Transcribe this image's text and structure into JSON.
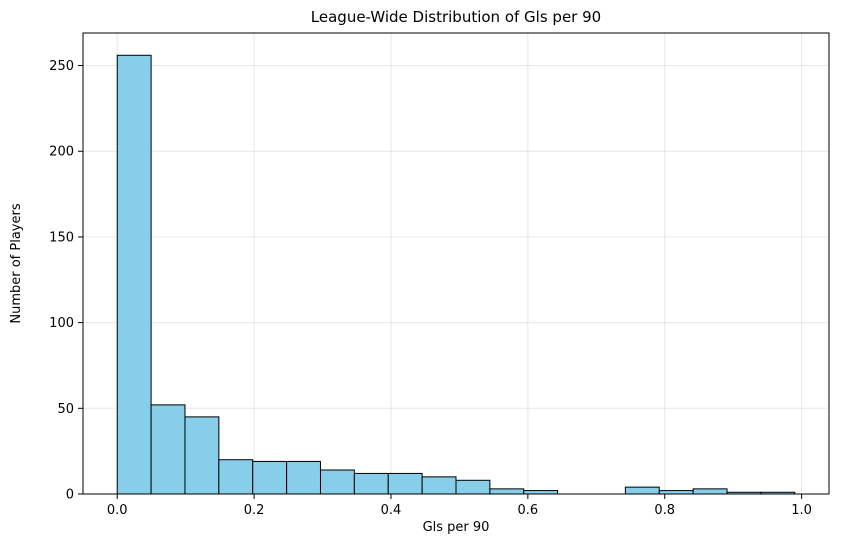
{
  "chart_data": {
    "type": "bar",
    "title": "League-Wide Distribution of Gls per 90",
    "xlabel": "Gls per 90",
    "ylabel": "Number of Players",
    "xlim": [
      -0.05,
      1.04
    ],
    "ylim": [
      0,
      269
    ],
    "grid": true,
    "bar_color": "#87ceeb",
    "edge_color": "#000000",
    "xticks": [
      0.0,
      0.2,
      0.4,
      0.6,
      0.8,
      1.0
    ],
    "xtick_labels": [
      "0.0",
      "0.2",
      "0.4",
      "0.6",
      "0.8",
      "1.0"
    ],
    "yticks": [
      0,
      50,
      100,
      150,
      200,
      250
    ],
    "ytick_labels": [
      "0",
      "50",
      "100",
      "150",
      "200",
      "250"
    ],
    "bins": [
      {
        "x0": 0.0,
        "x1": 0.0495,
        "count": 256
      },
      {
        "x0": 0.0495,
        "x1": 0.099,
        "count": 52
      },
      {
        "x0": 0.099,
        "x1": 0.1485,
        "count": 45
      },
      {
        "x0": 0.1485,
        "x1": 0.198,
        "count": 20
      },
      {
        "x0": 0.198,
        "x1": 0.2475,
        "count": 19
      },
      {
        "x0": 0.2475,
        "x1": 0.297,
        "count": 19
      },
      {
        "x0": 0.297,
        "x1": 0.3465,
        "count": 14
      },
      {
        "x0": 0.3465,
        "x1": 0.396,
        "count": 12
      },
      {
        "x0": 0.396,
        "x1": 0.4455,
        "count": 12
      },
      {
        "x0": 0.4455,
        "x1": 0.495,
        "count": 10
      },
      {
        "x0": 0.495,
        "x1": 0.5445,
        "count": 8
      },
      {
        "x0": 0.5445,
        "x1": 0.594,
        "count": 3
      },
      {
        "x0": 0.594,
        "x1": 0.6435,
        "count": 2
      },
      {
        "x0": 0.6435,
        "x1": 0.693,
        "count": 0
      },
      {
        "x0": 0.693,
        "x1": 0.7425,
        "count": 0
      },
      {
        "x0": 0.7425,
        "x1": 0.792,
        "count": 4
      },
      {
        "x0": 0.792,
        "x1": 0.8415,
        "count": 2
      },
      {
        "x0": 0.8415,
        "x1": 0.891,
        "count": 3
      },
      {
        "x0": 0.891,
        "x1": 0.9405,
        "count": 1
      },
      {
        "x0": 0.9405,
        "x1": 0.99,
        "count": 1
      }
    ]
  }
}
